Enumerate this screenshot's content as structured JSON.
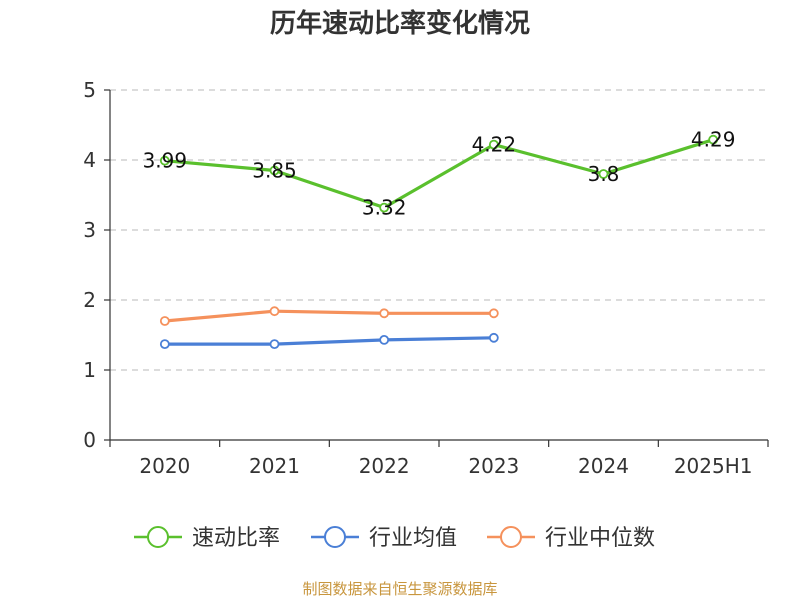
{
  "chart_data": {
    "type": "line",
    "title": "历年速动比率变化情况",
    "categories": [
      "2020",
      "2021",
      "2022",
      "2023",
      "2024",
      "2025H1"
    ],
    "ylim": [
      0,
      5
    ],
    "yticks": [
      0,
      1,
      2,
      3,
      4,
      5
    ],
    "grid": true,
    "legend_position": "bottom",
    "series": [
      {
        "name": "速动比率",
        "color": "#5ac02d",
        "values": [
          3.99,
          3.85,
          3.32,
          4.22,
          3.8,
          4.29
        ],
        "show_labels": true
      },
      {
        "name": "行业均值",
        "color": "#4a7fd6",
        "values": [
          1.37,
          1.37,
          1.43,
          1.46,
          null,
          null
        ],
        "show_labels": false
      },
      {
        "name": "行业中位数",
        "color": "#f5915c",
        "values": [
          1.7,
          1.84,
          1.81,
          1.81,
          null,
          null
        ],
        "show_labels": false
      }
    ]
  },
  "source": "制图数据来自恒生聚源数据库"
}
